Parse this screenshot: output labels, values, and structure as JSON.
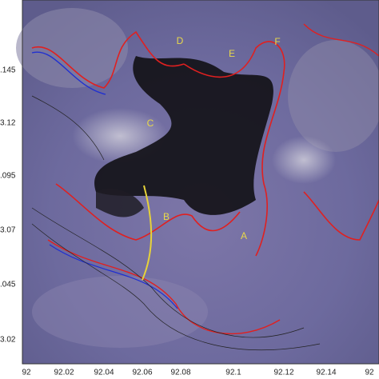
{
  "map": {
    "x_labels": [
      "92",
      "92.02",
      "92.04",
      "92.06",
      "92.08",
      "92.1",
      "92.12",
      "92.14",
      "92"
    ],
    "y_labels": [
      ".145",
      "3.12",
      ".095",
      "3.07",
      ".045",
      "3.02"
    ],
    "area_labels": [
      "D",
      "E",
      "F",
      "C",
      "B",
      "A"
    ]
  }
}
